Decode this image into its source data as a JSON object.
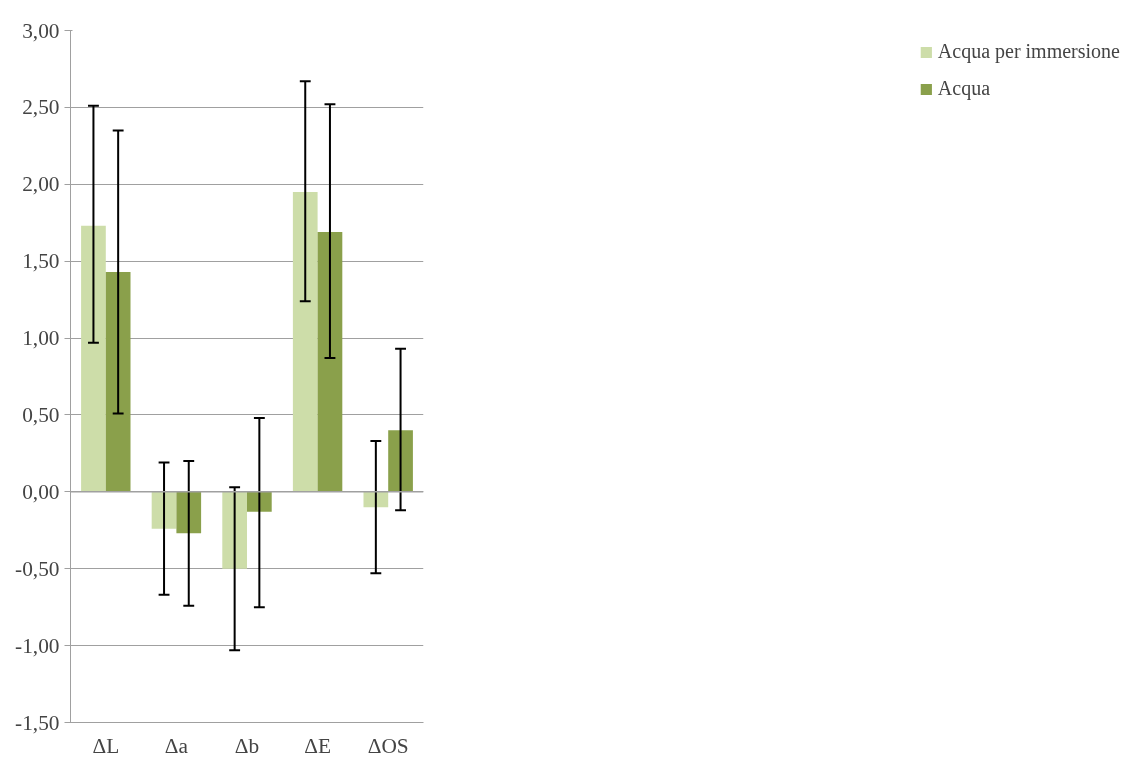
{
  "chart_data": {
    "type": "bar",
    "categories": [
      "ΔL",
      "Δa",
      "Δb",
      "ΔE",
      "ΔOS"
    ],
    "series": [
      {
        "name": "Acqua per immersione",
        "color": "#cddda9",
        "values": [
          1.73,
          -0.24,
          -0.5,
          1.95,
          -0.1
        ],
        "errors": [
          [
            0.97,
            2.51
          ],
          [
            -0.67,
            0.19
          ],
          [
            -1.03,
            0.03
          ],
          [
            1.24,
            2.67
          ],
          [
            -0.53,
            0.33
          ]
        ]
      },
      {
        "name": "Acqua",
        "color": "#8aa04b",
        "values": [
          1.43,
          -0.27,
          -0.13,
          1.69,
          0.4
        ],
        "errors": [
          [
            0.51,
            2.35
          ],
          [
            -0.74,
            0.2
          ],
          [
            -0.75,
            0.48
          ],
          [
            0.87,
            2.52
          ],
          [
            -0.12,
            0.93
          ]
        ]
      }
    ],
    "ylim": [
      -1.5,
      3.0
    ],
    "yticks": [
      {
        "value": -1.5,
        "label": "-1,50"
      },
      {
        "value": -1.0,
        "label": "-1,00"
      },
      {
        "value": -0.5,
        "label": "-0,50"
      },
      {
        "value": 0,
        "label": "0,00"
      },
      {
        "value": 0.5,
        "label": "0,50"
      },
      {
        "value": 1.0,
        "label": "1,00"
      },
      {
        "value": 1.5,
        "label": "1,50"
      },
      {
        "value": 2.0,
        "label": "2,00"
      },
      {
        "value": 2.5,
        "label": "2,50"
      },
      {
        "value": 3.0,
        "label": "3,00"
      }
    ],
    "grid": "y",
    "legend": "right"
  }
}
